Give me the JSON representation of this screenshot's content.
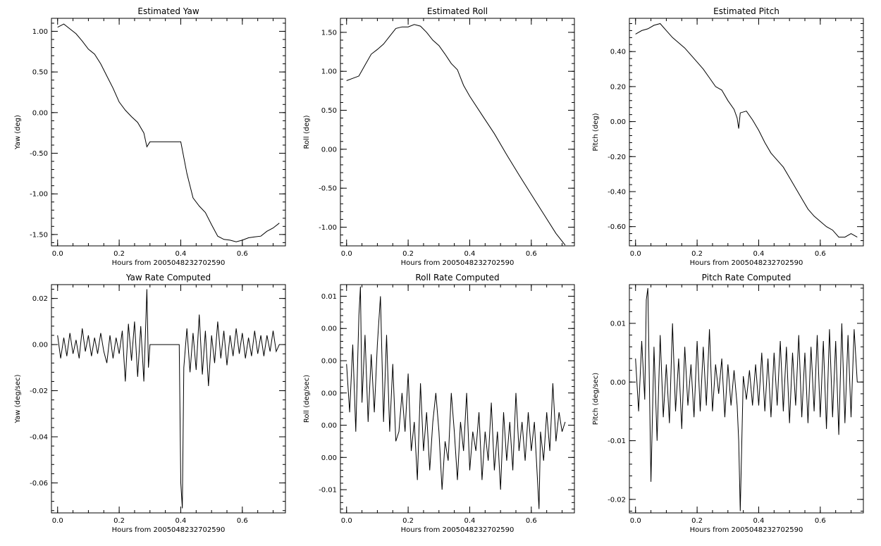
{
  "figure": {
    "background": "#ffffff",
    "line_color": "#000000"
  },
  "chart_data": [
    {
      "type": "line",
      "title": "Estimated Yaw",
      "xlabel": "Hours from 2005048232702590",
      "ylabel": "Yaw (deg)",
      "xlim": [
        -0.02,
        0.74
      ],
      "ylim": [
        -1.64,
        1.16
      ],
      "x_ticks": [
        "0.0",
        "0.2",
        "0.4",
        "0.6"
      ],
      "y_ticks": [
        "1.00",
        "0.50",
        "0.00",
        "-0.50",
        "-1.00",
        "-1.50"
      ],
      "series": [
        {
          "x": [
            0.0,
            0.02,
            0.04,
            0.06,
            0.08,
            0.1,
            0.12,
            0.14,
            0.16,
            0.18,
            0.2,
            0.22,
            0.24,
            0.26,
            0.28,
            0.29,
            0.3,
            0.32,
            0.34,
            0.36,
            0.38,
            0.4,
            0.42,
            0.44,
            0.46,
            0.48,
            0.5,
            0.52,
            0.54,
            0.56,
            0.58,
            0.6,
            0.62,
            0.64,
            0.66,
            0.68,
            0.7,
            0.72
          ],
          "y": [
            1.05,
            1.09,
            1.03,
            0.97,
            0.88,
            0.78,
            0.72,
            0.6,
            0.45,
            0.3,
            0.13,
            0.03,
            -0.05,
            -0.12,
            -0.25,
            -0.42,
            -0.36,
            -0.36,
            -0.36,
            -0.36,
            -0.36,
            -0.36,
            -0.75,
            -1.05,
            -1.15,
            -1.23,
            -1.38,
            -1.52,
            -1.56,
            -1.57,
            -1.59,
            -1.57,
            -1.54,
            -1.53,
            -1.52,
            -1.46,
            -1.42,
            -1.36
          ]
        }
      ]
    },
    {
      "type": "line",
      "title": "Estimated Roll",
      "xlabel": "Hours from 2005048232702590",
      "ylabel": "Roll (deg)",
      "xlim": [
        -0.02,
        0.74
      ],
      "ylim": [
        -1.24,
        1.68
      ],
      "x_ticks": [
        "0.0",
        "0.2",
        "0.4",
        "0.6"
      ],
      "y_ticks": [
        "1.50",
        "1.00",
        "0.50",
        "0.00",
        "-0.50",
        "-1.00"
      ],
      "series": [
        {
          "x": [
            0.0,
            0.02,
            0.04,
            0.06,
            0.08,
            0.1,
            0.12,
            0.14,
            0.16,
            0.18,
            0.2,
            0.22,
            0.24,
            0.26,
            0.28,
            0.3,
            0.32,
            0.34,
            0.36,
            0.38,
            0.4,
            0.44,
            0.48,
            0.52,
            0.56,
            0.6,
            0.64,
            0.68,
            0.71
          ],
          "y": [
            0.88,
            0.91,
            0.94,
            1.08,
            1.22,
            1.28,
            1.35,
            1.45,
            1.55,
            1.57,
            1.57,
            1.6,
            1.58,
            1.5,
            1.4,
            1.33,
            1.22,
            1.1,
            1.02,
            0.82,
            0.68,
            0.44,
            0.2,
            -0.07,
            -0.33,
            -0.58,
            -0.83,
            -1.08,
            -1.23
          ]
        }
      ]
    },
    {
      "type": "line",
      "title": "Estimated Pitch",
      "xlabel": "Hours from 2005048232702590",
      "ylabel": "Pitch (deg)",
      "xlim": [
        -0.02,
        0.74
      ],
      "ylim": [
        -0.71,
        0.59
      ],
      "x_ticks": [
        "0.0",
        "0.2",
        "0.4",
        "0.6"
      ],
      "y_ticks": [
        "0.40",
        "0.20",
        "0.00",
        "-0.20",
        "-0.40",
        "-0.60"
      ],
      "series": [
        {
          "x": [
            0.0,
            0.02,
            0.04,
            0.06,
            0.08,
            0.1,
            0.12,
            0.14,
            0.16,
            0.18,
            0.2,
            0.22,
            0.24,
            0.26,
            0.28,
            0.3,
            0.32,
            0.33,
            0.335,
            0.34,
            0.36,
            0.38,
            0.4,
            0.42,
            0.44,
            0.46,
            0.48,
            0.5,
            0.52,
            0.54,
            0.56,
            0.58,
            0.6,
            0.62,
            0.64,
            0.66,
            0.68,
            0.7,
            0.72
          ],
          "y": [
            0.5,
            0.52,
            0.53,
            0.55,
            0.56,
            0.52,
            0.48,
            0.45,
            0.42,
            0.38,
            0.34,
            0.3,
            0.25,
            0.2,
            0.18,
            0.12,
            0.07,
            0.02,
            -0.04,
            0.05,
            0.06,
            0.01,
            -0.05,
            -0.12,
            -0.18,
            -0.22,
            -0.26,
            -0.32,
            -0.38,
            -0.44,
            -0.5,
            -0.54,
            -0.57,
            -0.6,
            -0.62,
            -0.66,
            -0.66,
            -0.64,
            -0.66
          ]
        }
      ]
    },
    {
      "type": "line",
      "title": "Yaw Rate Computed",
      "xlabel": "Hours from 2005048232702590",
      "ylabel": "Yaw (deg/sec)",
      "xlim": [
        -0.02,
        0.74
      ],
      "ylim": [
        -0.073,
        0.026
      ],
      "x_ticks": [
        "0.0",
        "0.2",
        "0.4",
        "0.6"
      ],
      "y_ticks": [
        "0.02",
        "0.00",
        "-0.02",
        "-0.04",
        "-0.06"
      ],
      "series": [
        {
          "x": [
            0.0,
            0.01,
            0.02,
            0.03,
            0.04,
            0.05,
            0.06,
            0.07,
            0.08,
            0.09,
            0.1,
            0.11,
            0.12,
            0.13,
            0.14,
            0.15,
            0.16,
            0.17,
            0.18,
            0.19,
            0.2,
            0.21,
            0.22,
            0.23,
            0.24,
            0.25,
            0.26,
            0.27,
            0.28,
            0.29,
            0.295,
            0.3,
            0.32,
            0.34,
            0.36,
            0.38,
            0.39,
            0.395,
            0.4,
            0.405,
            0.41,
            0.42,
            0.43,
            0.44,
            0.45,
            0.46,
            0.47,
            0.48,
            0.49,
            0.5,
            0.51,
            0.52,
            0.53,
            0.54,
            0.55,
            0.56,
            0.57,
            0.58,
            0.59,
            0.6,
            0.61,
            0.62,
            0.63,
            0.64,
            0.65,
            0.66,
            0.67,
            0.68,
            0.69,
            0.7,
            0.71,
            0.72
          ],
          "y": [
            0.004,
            -0.006,
            0.003,
            -0.005,
            0.005,
            -0.004,
            0.002,
            -0.006,
            0.007,
            -0.003,
            0.004,
            -0.005,
            0.003,
            -0.004,
            0.005,
            -0.003,
            -0.008,
            0.004,
            -0.006,
            0.003,
            -0.004,
            0.006,
            -0.016,
            0.009,
            -0.007,
            0.01,
            -0.014,
            0.008,
            -0.016,
            0.024,
            -0.01,
            0.0,
            0.0,
            0.0,
            0.0,
            0.0,
            0.0,
            0.0,
            -0.06,
            -0.071,
            -0.01,
            0.007,
            -0.012,
            0.005,
            -0.011,
            0.013,
            -0.013,
            0.006,
            -0.018,
            0.004,
            -0.008,
            0.01,
            -0.006,
            0.006,
            -0.009,
            0.004,
            -0.005,
            0.007,
            -0.004,
            0.005,
            -0.006,
            0.003,
            -0.005,
            0.006,
            -0.004,
            0.004,
            -0.005,
            0.004,
            -0.003,
            0.006,
            -0.003,
            0.0
          ]
        }
      ]
    },
    {
      "type": "line",
      "title": "Roll Rate Computed",
      "xlabel": "Hours from 2005048232702590",
      "ylabel": "Roll (deg/sec)",
      "xlim": [
        -0.02,
        0.74
      ],
      "ylim": [
        -0.0124,
        0.0112
      ],
      "x_ticks": [
        "0.0",
        "0.2",
        "0.4",
        "0.6"
      ],
      "y_ticks": [
        "0.01",
        "0.00",
        "0.00",
        "0.00",
        "0.00",
        "0.00",
        "-0.01"
      ],
      "series": [
        {
          "x": [
            0.0,
            0.01,
            0.02,
            0.03,
            0.04,
            0.045,
            0.05,
            0.06,
            0.07,
            0.08,
            0.09,
            0.1,
            0.11,
            0.12,
            0.13,
            0.14,
            0.15,
            0.16,
            0.17,
            0.18,
            0.19,
            0.2,
            0.21,
            0.22,
            0.23,
            0.24,
            0.25,
            0.26,
            0.27,
            0.28,
            0.29,
            0.3,
            0.31,
            0.32,
            0.33,
            0.34,
            0.35,
            0.36,
            0.37,
            0.38,
            0.39,
            0.4,
            0.41,
            0.42,
            0.43,
            0.44,
            0.45,
            0.46,
            0.47,
            0.48,
            0.49,
            0.5,
            0.51,
            0.52,
            0.53,
            0.54,
            0.55,
            0.56,
            0.57,
            0.58,
            0.59,
            0.6,
            0.61,
            0.62,
            0.625,
            0.63,
            0.64,
            0.65,
            0.66,
            0.67,
            0.68,
            0.69,
            0.7,
            0.71
          ],
          "y": [
            0.003,
            -0.002,
            0.005,
            -0.004,
            0.008,
            0.011,
            -0.001,
            0.006,
            -0.003,
            0.004,
            -0.002,
            0.005,
            0.01,
            -0.003,
            0.006,
            -0.004,
            0.003,
            -0.005,
            -0.004,
            0.0,
            -0.004,
            0.002,
            -0.006,
            -0.003,
            -0.009,
            0.001,
            -0.006,
            -0.002,
            -0.008,
            -0.003,
            0.0,
            -0.004,
            -0.01,
            -0.005,
            -0.007,
            0.0,
            -0.004,
            -0.009,
            -0.003,
            -0.006,
            0.0,
            -0.008,
            -0.004,
            -0.006,
            -0.002,
            -0.009,
            -0.004,
            -0.007,
            -0.001,
            -0.008,
            -0.004,
            -0.01,
            -0.002,
            -0.007,
            -0.003,
            -0.008,
            0.0,
            -0.006,
            -0.003,
            -0.007,
            -0.002,
            -0.006,
            -0.003,
            -0.009,
            -0.012,
            -0.004,
            -0.007,
            -0.002,
            -0.006,
            0.001,
            -0.005,
            -0.002,
            -0.004,
            -0.003
          ]
        }
      ]
    },
    {
      "type": "line",
      "title": "Pitch Rate Computed",
      "xlabel": "Hours from 2005048232702590",
      "ylabel": "Pitch (deg/sec)",
      "xlim": [
        -0.02,
        0.74
      ],
      "ylim": [
        -0.0223,
        0.0166
      ],
      "x_ticks": [
        "0.0",
        "0.2",
        "0.4",
        "0.6"
      ],
      "y_ticks": [
        "0.01",
        "0.00",
        "-0.01",
        "-0.02"
      ],
      "series": [
        {
          "x": [
            0.0,
            0.01,
            0.02,
            0.03,
            0.035,
            0.04,
            0.05,
            0.06,
            0.07,
            0.08,
            0.09,
            0.1,
            0.11,
            0.12,
            0.13,
            0.14,
            0.15,
            0.16,
            0.17,
            0.18,
            0.19,
            0.2,
            0.21,
            0.22,
            0.23,
            0.24,
            0.25,
            0.26,
            0.27,
            0.28,
            0.29,
            0.3,
            0.31,
            0.32,
            0.33,
            0.335,
            0.34,
            0.35,
            0.36,
            0.37,
            0.38,
            0.39,
            0.4,
            0.41,
            0.42,
            0.43,
            0.44,
            0.45,
            0.46,
            0.47,
            0.48,
            0.49,
            0.5,
            0.51,
            0.52,
            0.53,
            0.54,
            0.55,
            0.56,
            0.57,
            0.58,
            0.59,
            0.6,
            0.61,
            0.62,
            0.63,
            0.64,
            0.65,
            0.66,
            0.67,
            0.68,
            0.69,
            0.7,
            0.71,
            0.72
          ],
          "y": [
            0.004,
            -0.005,
            0.007,
            -0.003,
            0.014,
            0.016,
            -0.017,
            0.006,
            -0.01,
            0.008,
            -0.006,
            0.003,
            -0.007,
            0.01,
            -0.005,
            0.004,
            -0.008,
            0.006,
            -0.004,
            0.003,
            -0.006,
            0.007,
            -0.005,
            0.006,
            -0.004,
            0.009,
            -0.005,
            0.003,
            -0.002,
            0.004,
            -0.006,
            0.003,
            -0.004,
            0.002,
            -0.004,
            -0.01,
            -0.022,
            0.001,
            -0.003,
            0.002,
            -0.004,
            0.003,
            -0.004,
            0.005,
            -0.005,
            0.004,
            -0.006,
            0.005,
            -0.004,
            0.007,
            -0.005,
            0.006,
            -0.007,
            0.005,
            -0.004,
            0.008,
            -0.006,
            0.005,
            -0.007,
            0.006,
            -0.005,
            0.008,
            -0.006,
            0.007,
            -0.008,
            0.009,
            -0.006,
            0.007,
            -0.009,
            0.01,
            -0.007,
            0.008,
            -0.006,
            0.009,
            0.0
          ]
        }
      ]
    }
  ]
}
